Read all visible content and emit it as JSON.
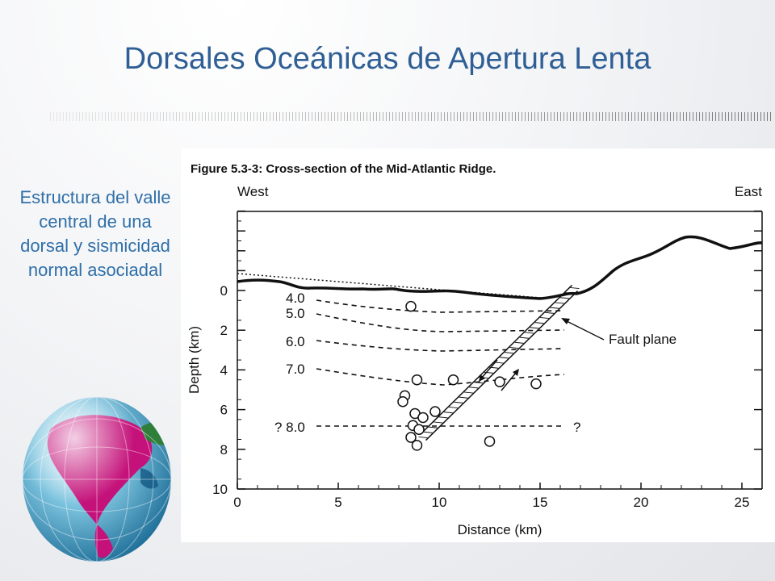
{
  "slide": {
    "title": "Dorsales Oceánicas de Apertura Lenta",
    "side_text": "Estructura del valle central de una dorsal y sismicidad normal asociadal"
  },
  "figure": {
    "caption": "Figure 5.3-3: Cross-section of the Mid-Atlantic Ridge.",
    "west_label": "West",
    "east_label": "East",
    "xlabel": "Distance (km)",
    "ylabel": "Depth (km)",
    "x_ticks": [
      "0",
      "5",
      "10",
      "15",
      "20",
      "25"
    ],
    "y_ticks": [
      "0",
      "2",
      "4",
      "6",
      "8",
      "10"
    ],
    "velocity_labels": [
      "4.0",
      "5.0",
      "6.0",
      "7.0",
      "? 8.0"
    ],
    "question_mark": "?",
    "fault_label": "Fault plane",
    "earthquakes": [
      [
        8.6,
        0.8
      ],
      [
        8.9,
        4.5
      ],
      [
        8.3,
        5.3
      ],
      [
        8.2,
        5.6
      ],
      [
        8.8,
        6.2
      ],
      [
        9.2,
        6.4
      ],
      [
        9.8,
        6.1
      ],
      [
        8.7,
        6.8
      ],
      [
        9.0,
        7.0
      ],
      [
        8.6,
        7.4
      ],
      [
        8.9,
        7.8
      ],
      [
        10.7,
        4.5
      ],
      [
        13.0,
        4.6
      ],
      [
        14.8,
        4.7
      ],
      [
        12.5,
        7.6
      ]
    ],
    "colors": {
      "title": "#2f5f95",
      "side_text": "#2f6fa8"
    }
  }
}
